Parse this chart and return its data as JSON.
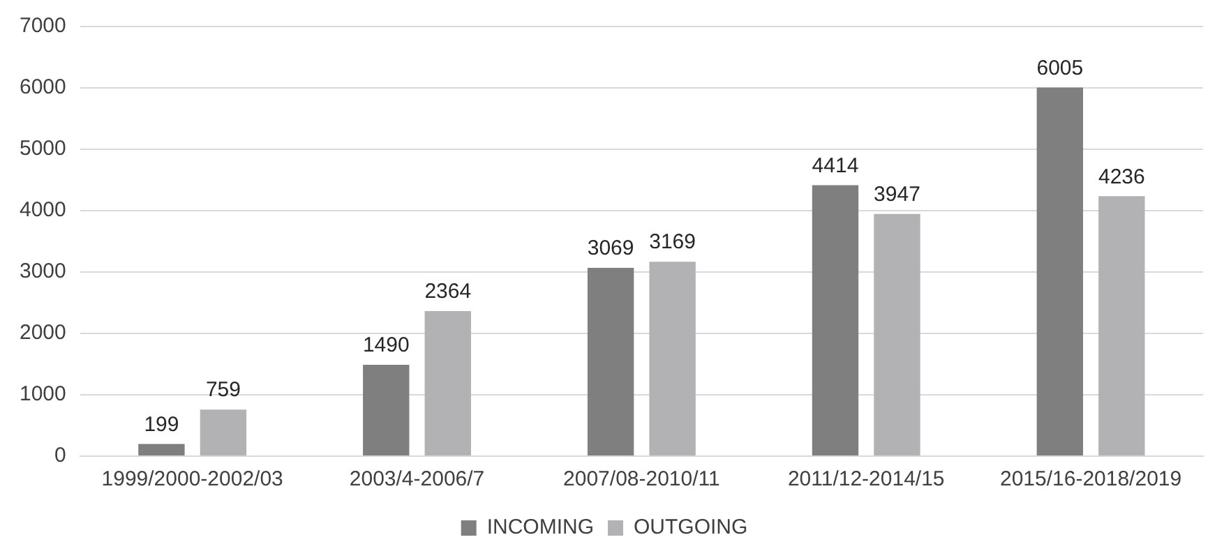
{
  "chart_data": {
    "type": "bar",
    "categories": [
      "1999/2000-2002/03",
      "2003/4-2006/7",
      "2007/08-2010/11",
      "2011/12-2014/15",
      "2015/16-2018/2019"
    ],
    "series": [
      {
        "name": "INCOMING",
        "color": "#7f7f80",
        "values": [
          199,
          1490,
          3069,
          4414,
          6005
        ]
      },
      {
        "name": "OUTGOING",
        "color": "#b2b2b4",
        "values": [
          759,
          2364,
          3169,
          3947,
          4236
        ]
      }
    ],
    "ylim": [
      0,
      7000
    ],
    "yticks": [
      0,
      1000,
      2000,
      3000,
      4000,
      5000,
      6000,
      7000
    ],
    "grid": "y",
    "legend": "bottom",
    "data_labels": true
  }
}
